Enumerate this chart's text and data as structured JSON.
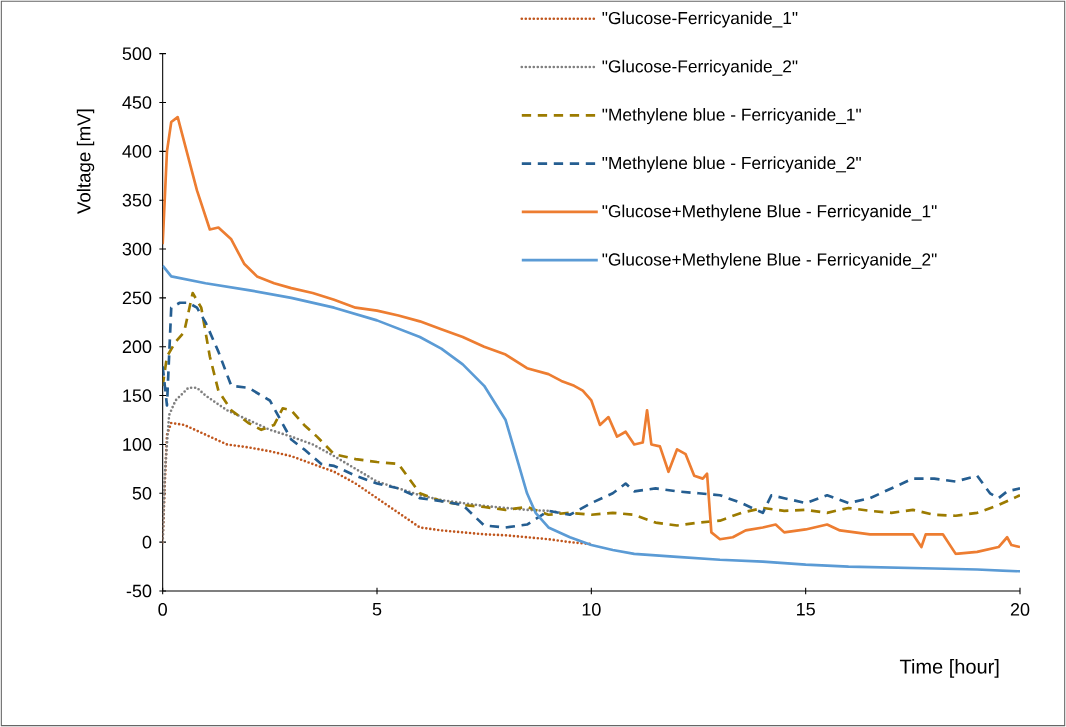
{
  "chart_data": {
    "type": "line",
    "xlabel": "Time [hour]",
    "ylabel": "Voltage [mV]",
    "xlim": [
      0,
      20
    ],
    "xticks": [
      0,
      5,
      10,
      15,
      20
    ],
    "ylim": [
      -50,
      500
    ],
    "yticks": [
      -50,
      0,
      50,
      100,
      150,
      200,
      250,
      300,
      350,
      400,
      450,
      500
    ],
    "legend": "top right",
    "series": [
      {
        "name": "\"Glucose-Ferricyanide_1\"",
        "color": "#c0561d",
        "line_style": "dotted",
        "x": [
          0,
          0.05,
          0.1,
          0.2,
          0.5,
          1,
          1.5,
          2,
          2.5,
          3,
          3.5,
          4,
          4.5,
          5,
          5.5,
          6,
          6.5,
          7,
          7.5,
          8,
          8.5,
          9,
          9.5,
          10
        ],
        "values": [
          0,
          60,
          110,
          122,
          120,
          110,
          100,
          97,
          93,
          88,
          80,
          72,
          60,
          45,
          30,
          15,
          12,
          10,
          8,
          7,
          5,
          3,
          0,
          -2
        ]
      },
      {
        "name": "\"Glucose-Ferricyanide_2\"",
        "color": "#7f7f7f",
        "line_style": "dotted",
        "x": [
          0,
          0.05,
          0.15,
          0.3,
          0.6,
          0.8,
          1,
          1.5,
          2,
          2.5,
          3,
          3.5,
          4,
          4.5,
          5,
          5.5,
          6,
          6.5,
          7,
          7.5,
          8,
          8.5,
          9,
          9.3
        ],
        "values": [
          0,
          70,
          130,
          145,
          158,
          158,
          150,
          135,
          125,
          115,
          108,
          100,
          88,
          75,
          62,
          55,
          48,
          43,
          40,
          37,
          35,
          33,
          32,
          30
        ]
      },
      {
        "name": "\"Methylene blue - Ferricyanide_1\"",
        "color": "#9c7b00",
        "line_style": "dashed",
        "x": [
          0,
          0.1,
          0.3,
          0.5,
          0.7,
          0.9,
          1.1,
          1.3,
          1.6,
          2,
          2.3,
          2.6,
          2.8,
          3,
          3.3,
          3.6,
          4,
          4.5,
          5,
          5.5,
          6,
          6.5,
          7,
          7.5,
          8,
          8.5,
          9,
          9.5,
          10,
          10.5,
          11,
          11.5,
          12,
          12.5,
          13,
          13.5,
          14,
          14.5,
          15,
          15.5,
          16,
          16.5,
          17,
          17.5,
          18,
          18.5,
          19,
          19.5,
          20
        ],
        "values": [
          160,
          190,
          205,
          215,
          255,
          240,
          190,
          155,
          135,
          122,
          115,
          120,
          137,
          135,
          120,
          108,
          90,
          85,
          82,
          80,
          50,
          42,
          38,
          36,
          33,
          36,
          28,
          30,
          28,
          30,
          28,
          20,
          17,
          20,
          22,
          30,
          35,
          32,
          33,
          30,
          35,
          32,
          30,
          33,
          28,
          27,
          30,
          38,
          48
        ]
      },
      {
        "name": "\"Methylene blue - Ferricyanide_2\"",
        "color": "#255e91",
        "line_style": "dashed",
        "x": [
          0,
          0.1,
          0.2,
          0.4,
          0.6,
          0.8,
          1,
          1.3,
          1.6,
          2,
          2.5,
          3,
          3.3,
          3.7,
          4,
          4.5,
          5,
          5.5,
          6,
          6.5,
          7,
          7.5,
          8,
          8.5,
          9,
          9.5,
          10,
          10.5,
          10.8,
          11,
          11.5,
          12,
          12.5,
          13,
          13.5,
          14,
          14.2,
          14.5,
          15,
          15.5,
          16,
          16.5,
          17,
          17.5,
          18,
          18.5,
          19,
          19.3,
          19.5,
          19.7,
          20
        ],
        "values": [
          180,
          140,
          240,
          245,
          245,
          240,
          225,
          195,
          160,
          158,
          145,
          105,
          95,
          80,
          78,
          68,
          60,
          55,
          45,
          42,
          38,
          17,
          15,
          18,
          32,
          28,
          40,
          50,
          60,
          52,
          55,
          52,
          50,
          48,
          40,
          30,
          48,
          45,
          40,
          48,
          40,
          45,
          55,
          65,
          65,
          62,
          68,
          50,
          45,
          52,
          55
        ]
      },
      {
        "name": "\"Glucose+Methylene Blue - Ferricyanide_1\"",
        "color": "#ed7d31",
        "line_style": "solid",
        "x": [
          0,
          0.1,
          0.2,
          0.35,
          0.5,
          0.8,
          1.1,
          1.3,
          1.6,
          1.9,
          2.2,
          2.6,
          3,
          3.5,
          4,
          4.5,
          5,
          5.5,
          6,
          6.5,
          7,
          7.5,
          8,
          8.5,
          9,
          9.3,
          9.6,
          9.8,
          10,
          10.2,
          10.4,
          10.6,
          10.8,
          11,
          11.2,
          11.3,
          11.4,
          11.6,
          11.8,
          12,
          12.2,
          12.4,
          12.6,
          12.7,
          12.8,
          13,
          13.3,
          13.6,
          14,
          14.3,
          14.5,
          15,
          15.5,
          15.8,
          16.5,
          17.5,
          17.7,
          17.8,
          18.2,
          18.5,
          19,
          19.5,
          19.7,
          19.8,
          20
        ],
        "values": [
          305,
          400,
          430,
          435,
          410,
          360,
          320,
          322,
          310,
          285,
          272,
          265,
          260,
          255,
          248,
          240,
          237,
          232,
          226,
          218,
          210,
          200,
          192,
          178,
          172,
          165,
          160,
          155,
          145,
          120,
          128,
          108,
          113,
          100,
          102,
          135,
          100,
          98,
          72,
          95,
          90,
          68,
          65,
          70,
          10,
          3,
          5,
          12,
          15,
          18,
          10,
          13,
          18,
          12,
          8,
          8,
          -5,
          8,
          8,
          -12,
          -10,
          -5,
          5,
          -3,
          -5
        ]
      },
      {
        "name": "\"Glucose+Methylene Blue - Ferricyanide_2\"",
        "color": "#5b9bd5",
        "line_style": "solid",
        "x": [
          0,
          0.2,
          1,
          2,
          3,
          4,
          5,
          6,
          6.5,
          7,
          7.5,
          8,
          8.3,
          8.5,
          8.7,
          9,
          9.5,
          10,
          10.5,
          11,
          12,
          13,
          14,
          15,
          16,
          17,
          18,
          19,
          20
        ],
        "values": [
          283,
          272,
          265,
          258,
          250,
          240,
          227,
          210,
          198,
          182,
          160,
          125,
          80,
          50,
          30,
          15,
          5,
          -3,
          -8,
          -12,
          -15,
          -18,
          -20,
          -23,
          -25,
          -26,
          -27,
          -28,
          -30
        ]
      }
    ]
  }
}
